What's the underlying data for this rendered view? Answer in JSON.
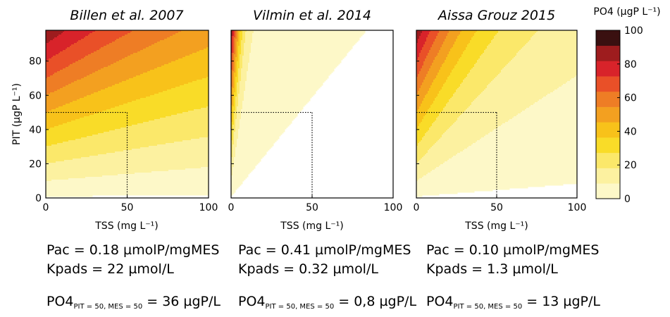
{
  "chart_data": [
    {
      "type": "contour",
      "title": "Billen et al. 2007",
      "xlabel": "TSS (mg L⁻¹)",
      "ylabel": "PIT (µgP L⁻¹)",
      "xlim": [
        0,
        100
      ],
      "ylim": [
        0,
        98
      ],
      "x_ticks": [
        "0",
        "50",
        "100"
      ],
      "y_ticks": [
        "0",
        "20",
        "40",
        "60",
        "80"
      ],
      "model": {
        "Pac": 0.18,
        "Kpads": 22
      },
      "marker": {
        "x": 50,
        "y": 50
      }
    },
    {
      "type": "contour",
      "title": "Vilmin et al. 2014",
      "xlabel": "TSS (mg L⁻¹)",
      "xlim": [
        0,
        100
      ],
      "ylim": [
        0,
        98
      ],
      "x_ticks": [
        "0",
        "50",
        "100"
      ],
      "model": {
        "Pac": 0.41,
        "Kpads": 0.32
      },
      "marker": {
        "x": 50,
        "y": 50
      }
    },
    {
      "type": "contour",
      "title": "Aissa Grouz 2015",
      "xlabel": "TSS (mg L⁻¹)",
      "xlim": [
        0,
        100
      ],
      "ylim": [
        0,
        98
      ],
      "x_ticks": [
        "0",
        "50",
        "100"
      ],
      "model": {
        "Pac": 0.1,
        "Kpads": 1.3
      },
      "marker": {
        "x": 50,
        "y": 50
      }
    }
  ],
  "colorbar": {
    "title": "PO4 (µgP L⁻¹)",
    "range": [
      0,
      100
    ],
    "ticks": [
      "0",
      "20",
      "40",
      "60",
      "80",
      "100"
    ],
    "levels": [
      0,
      10,
      20,
      30,
      40,
      50,
      60,
      70,
      80,
      90,
      100
    ],
    "colors": [
      "#fdf8c8",
      "#fcf1a0",
      "#fbe86a",
      "#f9dc28",
      "#f8c21a",
      "#f3a020",
      "#ee7d25",
      "#e95028",
      "#d8232a",
      "#9e1c1e",
      "#3a1010"
    ]
  },
  "annotations": [
    {
      "pac_text": "Pac = 0.18 µmolP/mgMES",
      "kpads_text": "Kpads = 22 µmol/L",
      "po4_label": "PO4",
      "po4_sub": "PIT = 50, MES = 50",
      "po4_value": "= 36 µgP/L"
    },
    {
      "pac_text": "Pac = 0.41 µmolP/mgMES",
      "kpads_text": "Kpads = 0.32 µmol/L",
      "po4_label": "PO4",
      "po4_sub": "PIT = 50, MES = 50",
      "po4_value": "= 0,8 µgP/L"
    },
    {
      "pac_text": "Pac = 0.10 µmolP/mgMES",
      "kpads_text": "Kpads = 1.3 µmol/L",
      "po4_label": "PO4",
      "po4_sub": "PIT = 50, MES = 50",
      "po4_value": "= 13 µgP/L"
    }
  ]
}
